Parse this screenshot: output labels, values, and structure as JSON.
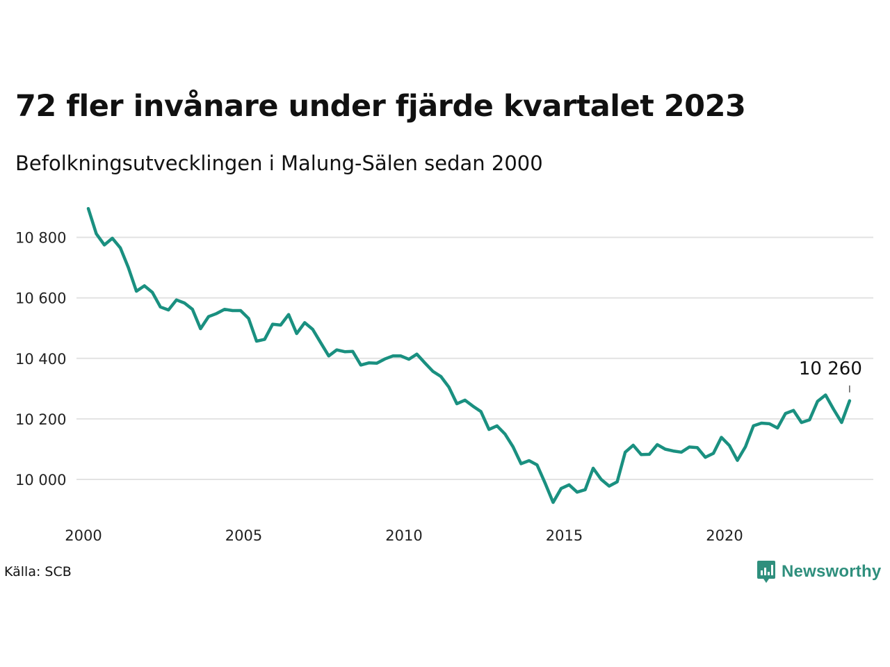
{
  "title": "72 fler invånare under fjärde kvartalet 2023",
  "subtitle": "Befolkningsutvecklingen i Malung-Sälen sedan 2000",
  "source": "Källa: SCB",
  "brand": {
    "name": "Newsworthy",
    "color": "#2f8f7d"
  },
  "chart_data": {
    "type": "line",
    "title": "72 fler invånare under fjärde kvartalet 2023",
    "subtitle": "Befolkningsutvecklingen i Malung-Sälen sedan 2000",
    "xlabel": "",
    "ylabel": "",
    "ylim": [
      9920,
      10910
    ],
    "xlim": [
      2000,
      2024.7
    ],
    "grid": "horizontal",
    "line_color": "#1a9080",
    "y_ticks": [
      {
        "value": 10000,
        "label": "10 000"
      },
      {
        "value": 10200,
        "label": "10 200"
      },
      {
        "value": 10400,
        "label": "10 400"
      },
      {
        "value": 10600,
        "label": "10 600"
      },
      {
        "value": 10800,
        "label": "10 800"
      }
    ],
    "x_ticks": [
      {
        "value": 2000,
        "label": "2000"
      },
      {
        "value": 2005,
        "label": "2005"
      },
      {
        "value": 2010,
        "label": "2010"
      },
      {
        "value": 2015,
        "label": "2015"
      },
      {
        "value": 2020,
        "label": "2020"
      }
    ],
    "annotation": {
      "x": 2023.75,
      "y": 10260,
      "label": "10 260"
    },
    "series": [
      {
        "values": [
          [
            2000.0,
            10895
          ],
          [
            2000.25,
            10812
          ],
          [
            2000.5,
            10775
          ],
          [
            2000.75,
            10797
          ],
          [
            2001.0,
            10765
          ],
          [
            2001.25,
            10700
          ],
          [
            2001.5,
            10622
          ],
          [
            2001.75,
            10640
          ],
          [
            2002.0,
            10618
          ],
          [
            2002.25,
            10570
          ],
          [
            2002.5,
            10560
          ],
          [
            2002.75,
            10593
          ],
          [
            2003.0,
            10583
          ],
          [
            2003.25,
            10562
          ],
          [
            2003.5,
            10498
          ],
          [
            2003.75,
            10538
          ],
          [
            2004.0,
            10548
          ],
          [
            2004.25,
            10562
          ],
          [
            2004.5,
            10558
          ],
          [
            2004.75,
            10558
          ],
          [
            2005.0,
            10532
          ],
          [
            2005.25,
            10457
          ],
          [
            2005.5,
            10463
          ],
          [
            2005.75,
            10513
          ],
          [
            2006.0,
            10510
          ],
          [
            2006.25,
            10545
          ],
          [
            2006.5,
            10482
          ],
          [
            2006.75,
            10518
          ],
          [
            2007.0,
            10496
          ],
          [
            2007.25,
            10452
          ],
          [
            2007.5,
            10408
          ],
          [
            2007.75,
            10428
          ],
          [
            2008.0,
            10422
          ],
          [
            2008.25,
            10423
          ],
          [
            2008.5,
            10378
          ],
          [
            2008.75,
            10385
          ],
          [
            2009.0,
            10384
          ],
          [
            2009.25,
            10398
          ],
          [
            2009.5,
            10408
          ],
          [
            2009.75,
            10408
          ],
          [
            2010.0,
            10397
          ],
          [
            2010.25,
            10414
          ],
          [
            2010.5,
            10385
          ],
          [
            2010.75,
            10357
          ],
          [
            2011.0,
            10340
          ],
          [
            2011.25,
            10305
          ],
          [
            2011.5,
            10250
          ],
          [
            2011.75,
            10262
          ],
          [
            2012.0,
            10242
          ],
          [
            2012.25,
            10224
          ],
          [
            2012.5,
            10165
          ],
          [
            2012.75,
            10177
          ],
          [
            2013.0,
            10150
          ],
          [
            2013.25,
            10108
          ],
          [
            2013.5,
            10052
          ],
          [
            2013.75,
            10062
          ],
          [
            2014.0,
            10048
          ],
          [
            2014.25,
            9988
          ],
          [
            2014.5,
            9924
          ],
          [
            2014.75,
            9970
          ],
          [
            2015.0,
            9982
          ],
          [
            2015.25,
            9958
          ],
          [
            2015.5,
            9966
          ],
          [
            2015.75,
            10037
          ],
          [
            2016.0,
            10000
          ],
          [
            2016.25,
            9978
          ],
          [
            2016.5,
            9992
          ],
          [
            2016.75,
            10090
          ],
          [
            2017.0,
            10113
          ],
          [
            2017.25,
            10082
          ],
          [
            2017.5,
            10083
          ],
          [
            2017.75,
            10115
          ],
          [
            2018.0,
            10100
          ],
          [
            2018.25,
            10094
          ],
          [
            2018.5,
            10090
          ],
          [
            2018.75,
            10107
          ],
          [
            2019.0,
            10105
          ],
          [
            2019.25,
            10073
          ],
          [
            2019.5,
            10086
          ],
          [
            2019.75,
            10139
          ],
          [
            2020.0,
            10112
          ],
          [
            2020.25,
            10063
          ],
          [
            2020.5,
            10108
          ],
          [
            2020.75,
            10177
          ],
          [
            2021.0,
            10186
          ],
          [
            2021.25,
            10184
          ],
          [
            2021.5,
            10170
          ],
          [
            2021.75,
            10218
          ],
          [
            2022.0,
            10228
          ],
          [
            2022.25,
            10188
          ],
          [
            2022.5,
            10197
          ],
          [
            2022.75,
            10258
          ],
          [
            2023.0,
            10279
          ],
          [
            2023.25,
            10232
          ],
          [
            2023.5,
            10188
          ],
          [
            2023.75,
            10260
          ]
        ]
      }
    ]
  }
}
